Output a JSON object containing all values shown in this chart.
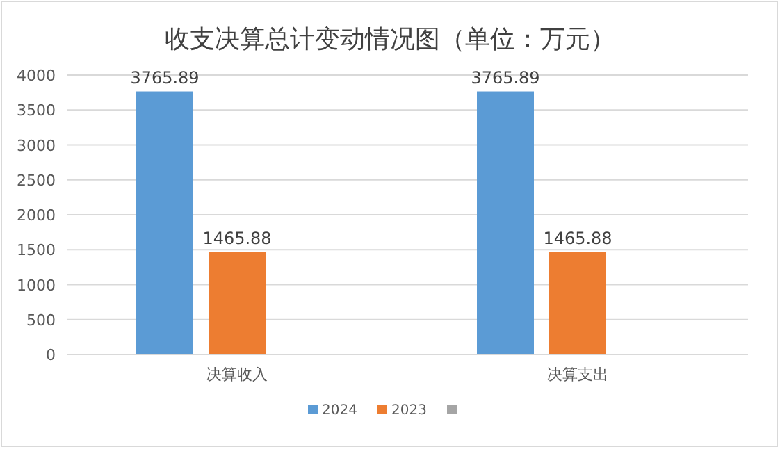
{
  "chart_data": {
    "type": "bar",
    "title": "收支决算总计变动情况图（单位：万元）",
    "categories": [
      "决算收入",
      "决算支出"
    ],
    "series": [
      {
        "name": "2024",
        "color": "#5b9bd5",
        "values": [
          3765.89,
          3765.89
        ]
      },
      {
        "name": "2023",
        "color": "#ed7d31",
        "values": [
          1465.88,
          1465.88
        ]
      },
      {
        "color": "#a5a5a5",
        "values": [
          null,
          null
        ]
      }
    ],
    "ylim": [
      0,
      4000
    ],
    "yticks": [
      0,
      500,
      1000,
      1500,
      2000,
      2500,
      3000,
      3500,
      4000
    ],
    "grid": "y",
    "legend": "bottom",
    "data_labels": true
  }
}
